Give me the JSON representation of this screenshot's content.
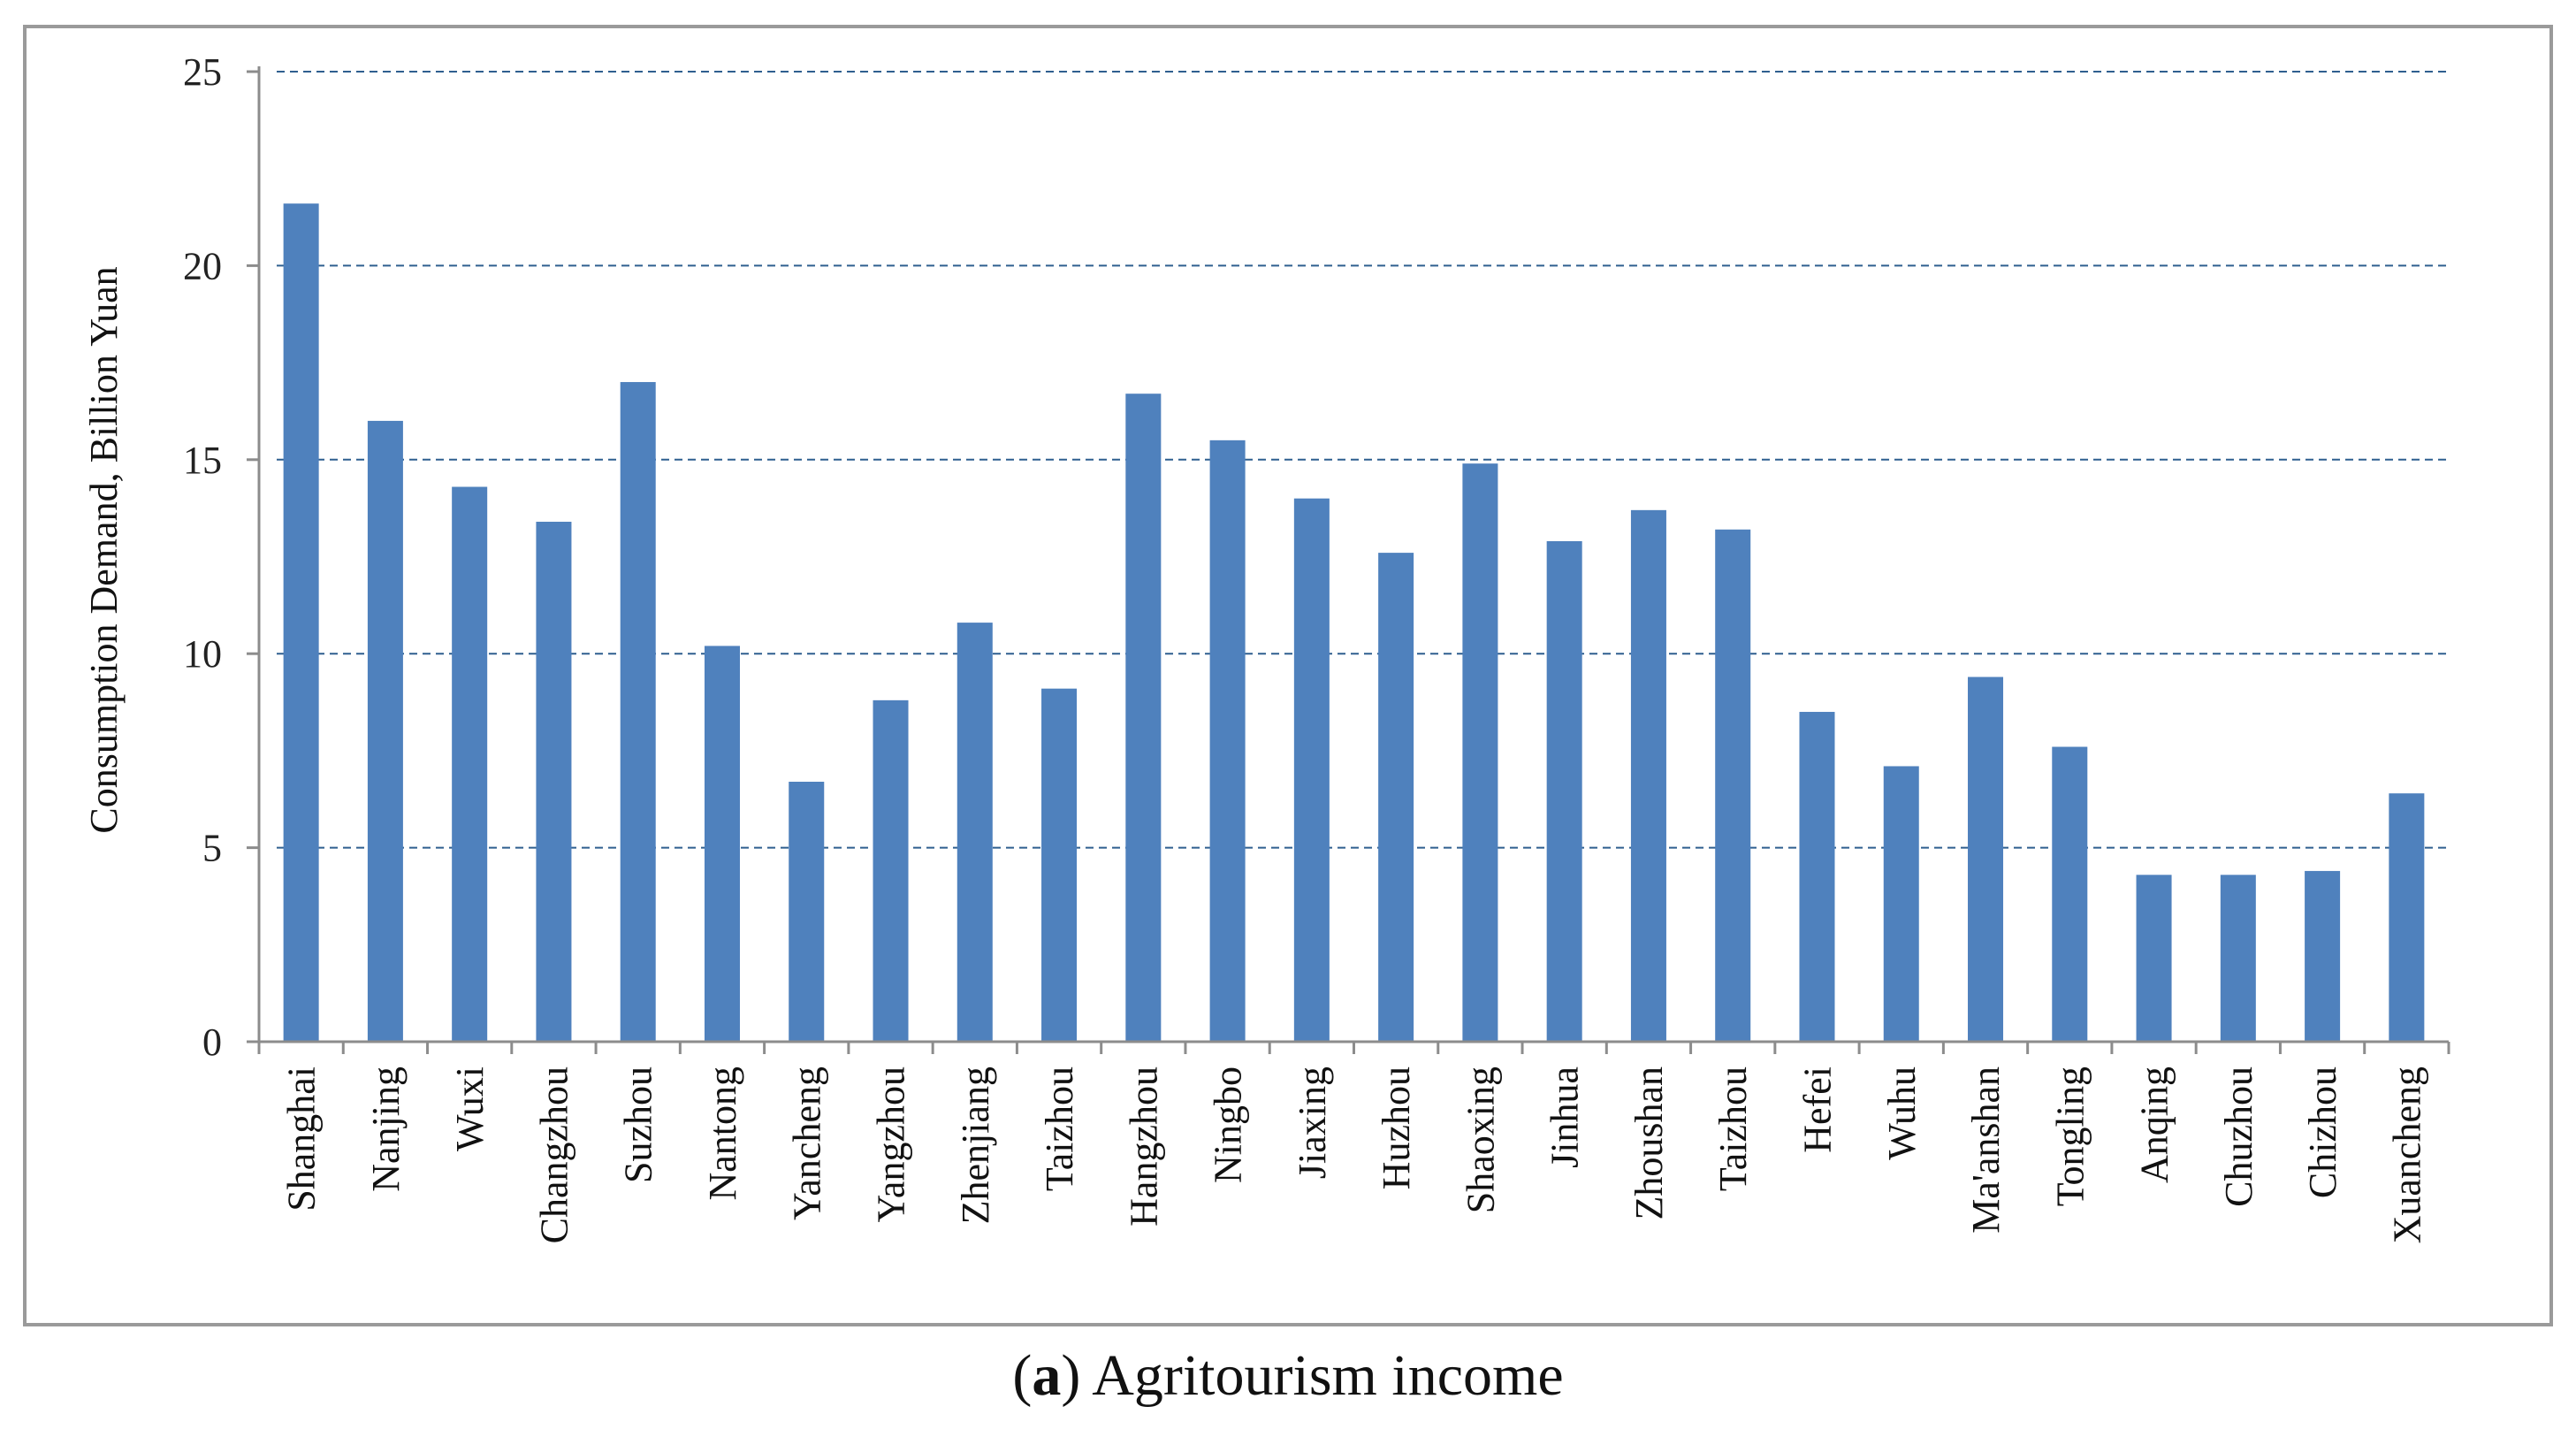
{
  "caption": {
    "label": "a",
    "text": "Agritourism income"
  },
  "chart_data": {
    "type": "bar",
    "title": "",
    "xlabel": "",
    "ylabel": "Consumption Demand, Billion Yuan",
    "ylim": [
      0,
      25
    ],
    "yticks": [
      0,
      5,
      10,
      15,
      20,
      25
    ],
    "grid": "horizontal dashed",
    "bar_color": "#4f81bd",
    "grid_color": "#2f5f8f",
    "categories": [
      "Shanghai",
      "Nanjing",
      "Wuxi",
      "Changzhou",
      "Suzhou",
      "Nantong",
      "Yancheng",
      "Yangzhou",
      "Zhenjiang",
      "Taizhou",
      "Hangzhou",
      "Ningbo",
      "Jiaxing",
      "Huzhou",
      "Shaoxing",
      "Jinhua",
      "Zhoushan",
      "Taizhou",
      "Hefei",
      "Wuhu",
      "Ma'anshan",
      "Tongling",
      "Anqing",
      "Chuzhou",
      "Chizhou",
      "Xuancheng"
    ],
    "values": [
      21.6,
      16.0,
      14.3,
      13.4,
      17.0,
      10.2,
      6.7,
      8.8,
      10.8,
      9.1,
      16.7,
      15.5,
      14.0,
      12.6,
      14.9,
      12.9,
      13.7,
      13.2,
      8.5,
      7.1,
      9.4,
      7.6,
      4.3,
      4.3,
      4.4,
      6.4
    ]
  }
}
